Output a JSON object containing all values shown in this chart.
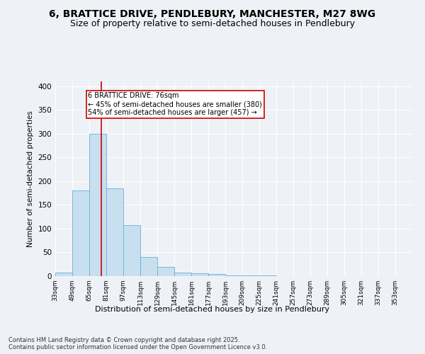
{
  "title_line1": "6, BRATTICE DRIVE, PENDLEBURY, MANCHESTER, M27 8WG",
  "title_line2": "Size of property relative to semi-detached houses in Pendlebury",
  "xlabel": "Distribution of semi-detached houses by size in Pendlebury",
  "ylabel": "Number of semi-detached properties",
  "bins": [
    "33sqm",
    "49sqm",
    "65sqm",
    "81sqm",
    "97sqm",
    "113sqm",
    "129sqm",
    "145sqm",
    "161sqm",
    "177sqm",
    "193sqm",
    "209sqm",
    "225sqm",
    "241sqm",
    "257sqm",
    "273sqm",
    "289sqm",
    "305sqm",
    "321sqm",
    "337sqm",
    "353sqm"
  ],
  "bin_edges": [
    33,
    49,
    65,
    81,
    97,
    113,
    129,
    145,
    161,
    177,
    193,
    209,
    225,
    241,
    257,
    273,
    289,
    305,
    321,
    337,
    353
  ],
  "values": [
    8,
    180,
    300,
    185,
    108,
    40,
    20,
    8,
    6,
    4,
    2,
    1,
    1,
    0,
    0,
    0,
    0,
    0,
    0,
    0
  ],
  "bar_color": "#c8dff0",
  "bar_edge_color": "#6aaed6",
  "property_size": 76,
  "red_line_color": "#cc0000",
  "annotation_text_line1": "6 BRATTICE DRIVE: 76sqm",
  "annotation_text_line2": "← 45% of semi-detached houses are smaller (380)",
  "annotation_text_line3": "54% of semi-detached houses are larger (457) →",
  "annotation_box_color": "#ffffff",
  "annotation_box_edge_color": "#cc0000",
  "ylim": [
    0,
    410
  ],
  "yticks": [
    0,
    50,
    100,
    150,
    200,
    250,
    300,
    350,
    400
  ],
  "footer_line1": "Contains HM Land Registry data © Crown copyright and database right 2025.",
  "footer_line2": "Contains public sector information licensed under the Open Government Licence v3.0.",
  "bg_color": "#eef2f7",
  "grid_color": "#ffffff",
  "title_fontsize": 10,
  "subtitle_fontsize": 9
}
